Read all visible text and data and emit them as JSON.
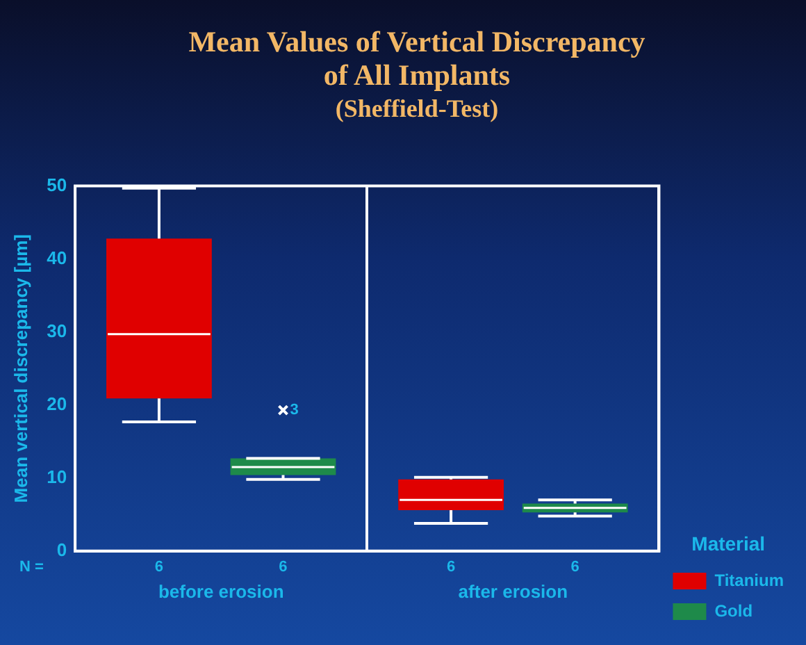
{
  "chart_data": {
    "type": "box",
    "title": "Mean Values of Vertical Discrepancy of All Implants",
    "subtitle": "(Sheffield-Test)",
    "ylabel": "Mean vertical discrepancy [µm]",
    "legend_title": "Material",
    "categories": [
      "before erosion",
      "after erosion"
    ],
    "ylim": [
      0,
      50
    ],
    "yticks": [
      0,
      10,
      20,
      30,
      40,
      50
    ],
    "grid": "x",
    "legend": "bottom right",
    "series": [
      {
        "name": "Titanium",
        "color": "#e00000",
        "boxes": [
          {
            "low": 17.7,
            "q1": 20.9,
            "median": 29.7,
            "q3": 42.8,
            "high": 49.7
          },
          {
            "low": 3.8,
            "q1": 5.6,
            "median": 7.0,
            "q3": 9.8,
            "high": 10.1
          }
        ]
      },
      {
        "name": "Gold",
        "color": "#1e8a4a",
        "boxes": [
          {
            "low": 9.8,
            "q1": 10.4,
            "median": 11.5,
            "q3": 12.7,
            "high": 12.7,
            "outliers": [
              19.3
            ]
          },
          {
            "low": 4.8,
            "q1": 5.3,
            "median": 5.9,
            "q3": 6.5,
            "high": 7.0
          }
        ]
      }
    ],
    "annotations": [
      "N =",
      "6",
      "6",
      "6",
      "6",
      "3"
    ]
  }
}
